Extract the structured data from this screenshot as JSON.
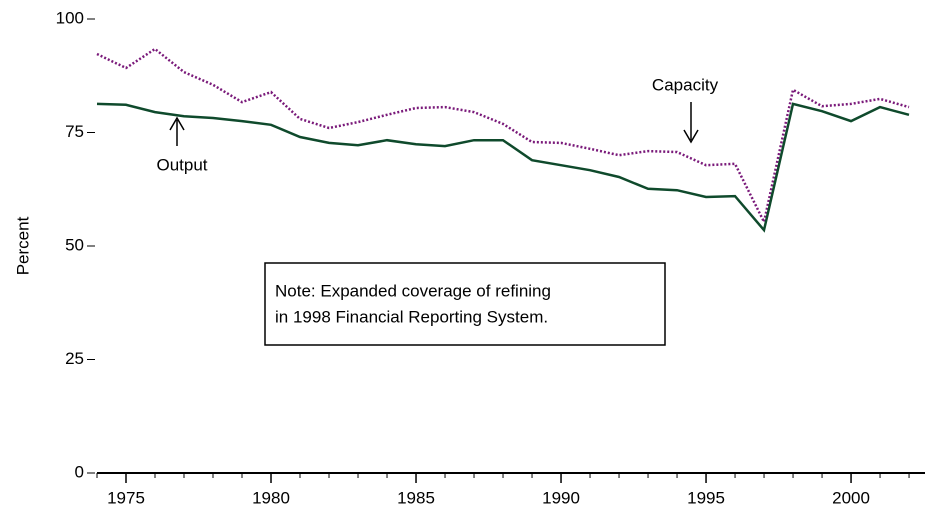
{
  "chart_data": {
    "type": "line",
    "y_label": "Percent",
    "x": [
      1974,
      1975,
      1976,
      1977,
      1978,
      1979,
      1980,
      1981,
      1982,
      1983,
      1984,
      1985,
      1986,
      1987,
      1988,
      1989,
      1990,
      1991,
      1992,
      1993,
      1994,
      1995,
      1996,
      1997,
      1998,
      1999,
      2000,
      2001,
      2002
    ],
    "series": [
      {
        "name": "Output",
        "color": "#0f4a2c",
        "style": "solid",
        "values": [
          81.3,
          81.1,
          79.5,
          78.6,
          78.2,
          77.5,
          76.7,
          74.0,
          72.7,
          72.2,
          73.3,
          72.4,
          72.0,
          73.3,
          73.3,
          68.9,
          67.8,
          66.7,
          65.2,
          62.6,
          62.3,
          60.8,
          61.0,
          53.5,
          81.3,
          79.7,
          77.5,
          80.6,
          78.9
        ]
      },
      {
        "name": "Capacity",
        "color": "#7a1a7a",
        "style": "dotted",
        "values": [
          92.3,
          89.2,
          93.4,
          88.3,
          85.5,
          81.7,
          83.9,
          78.0,
          76.0,
          77.3,
          78.9,
          80.4,
          80.6,
          79.5,
          76.9,
          72.9,
          72.7,
          71.4,
          70.0,
          70.9,
          70.7,
          67.8,
          68.1,
          55.3,
          84.4,
          80.8,
          81.3,
          82.4,
          80.6
        ]
      }
    ],
    "note": [
      "Note:  Expanded coverage of refining",
      "in 1998 Financial Reporting System."
    ],
    "xlim": [
      1974,
      2002.55
    ],
    "xticks": [
      1975,
      1980,
      1985,
      1990,
      1995,
      2000
    ],
    "ylim": [
      0,
      100
    ],
    "yticks": [
      0,
      25,
      50,
      75,
      100
    ]
  }
}
